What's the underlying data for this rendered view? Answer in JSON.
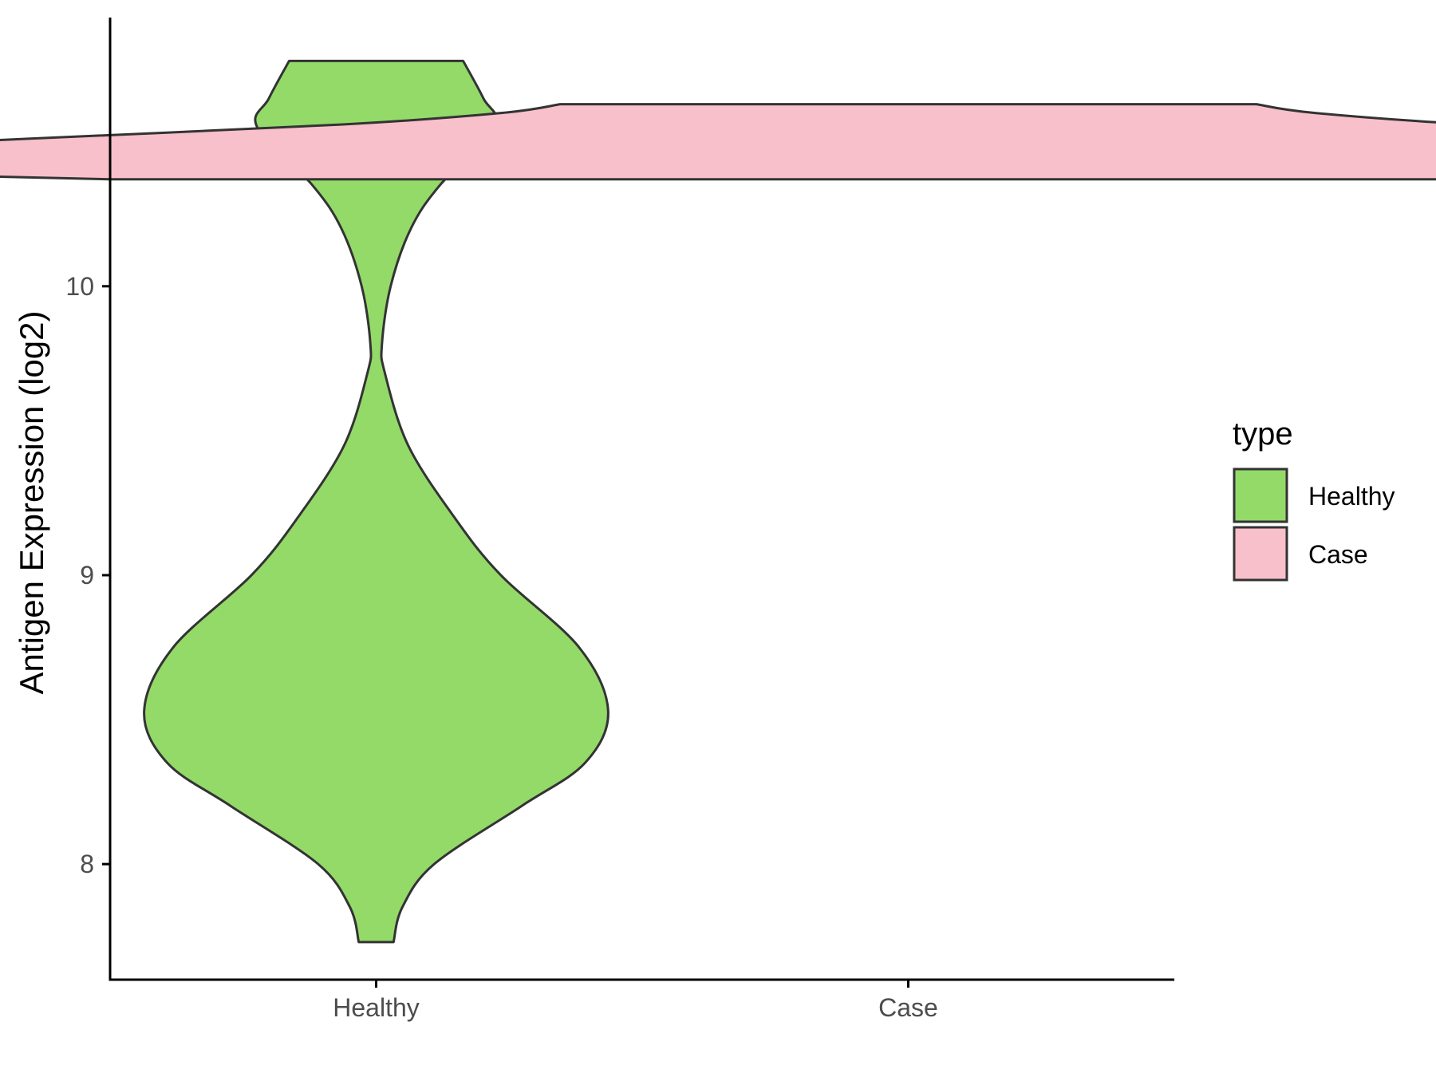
{
  "chart_data": {
    "type": "violin",
    "title": "",
    "xlabel": "",
    "ylabel": "Antigen Expression (log2)",
    "ylim": [
      7.6,
      10.93
    ],
    "yticks": [
      8,
      9,
      10
    ],
    "categories": [
      "Healthy",
      "Case"
    ],
    "grid": false,
    "legend": {
      "title": "type",
      "position": "right",
      "entries": [
        {
          "label": "Healthy",
          "color": "#93DA69"
        },
        {
          "label": "Case",
          "color": "#F8C0CA"
        }
      ]
    },
    "series": [
      {
        "category": "Healthy",
        "color": "#93DA69",
        "min": 7.73,
        "max": 10.78,
        "density": [
          [
            7.73,
            0.06
          ],
          [
            7.85,
            0.09
          ],
          [
            8.0,
            0.2
          ],
          [
            8.2,
            0.5
          ],
          [
            8.35,
            0.72
          ],
          [
            8.53,
            0.8
          ],
          [
            8.75,
            0.7
          ],
          [
            9.0,
            0.43
          ],
          [
            9.2,
            0.27
          ],
          [
            9.45,
            0.11
          ],
          [
            9.7,
            0.03
          ],
          [
            9.8,
            0.02
          ],
          [
            10.0,
            0.05
          ],
          [
            10.2,
            0.12
          ],
          [
            10.35,
            0.22
          ],
          [
            10.55,
            0.41
          ],
          [
            10.65,
            0.37
          ],
          [
            10.78,
            0.3
          ]
        ]
      },
      {
        "category": "Case",
        "color": "#F8C0CA",
        "min": 10.37,
        "max": 10.63,
        "density": [
          [
            10.37,
            2.75
          ],
          [
            10.39,
            3.55
          ],
          [
            10.42,
            4.45
          ],
          [
            10.44,
            4.4
          ],
          [
            10.47,
            3.9
          ],
          [
            10.51,
            3.05
          ],
          [
            10.56,
            1.95
          ],
          [
            10.6,
            1.4
          ],
          [
            10.63,
            1.2
          ]
        ]
      }
    ]
  }
}
